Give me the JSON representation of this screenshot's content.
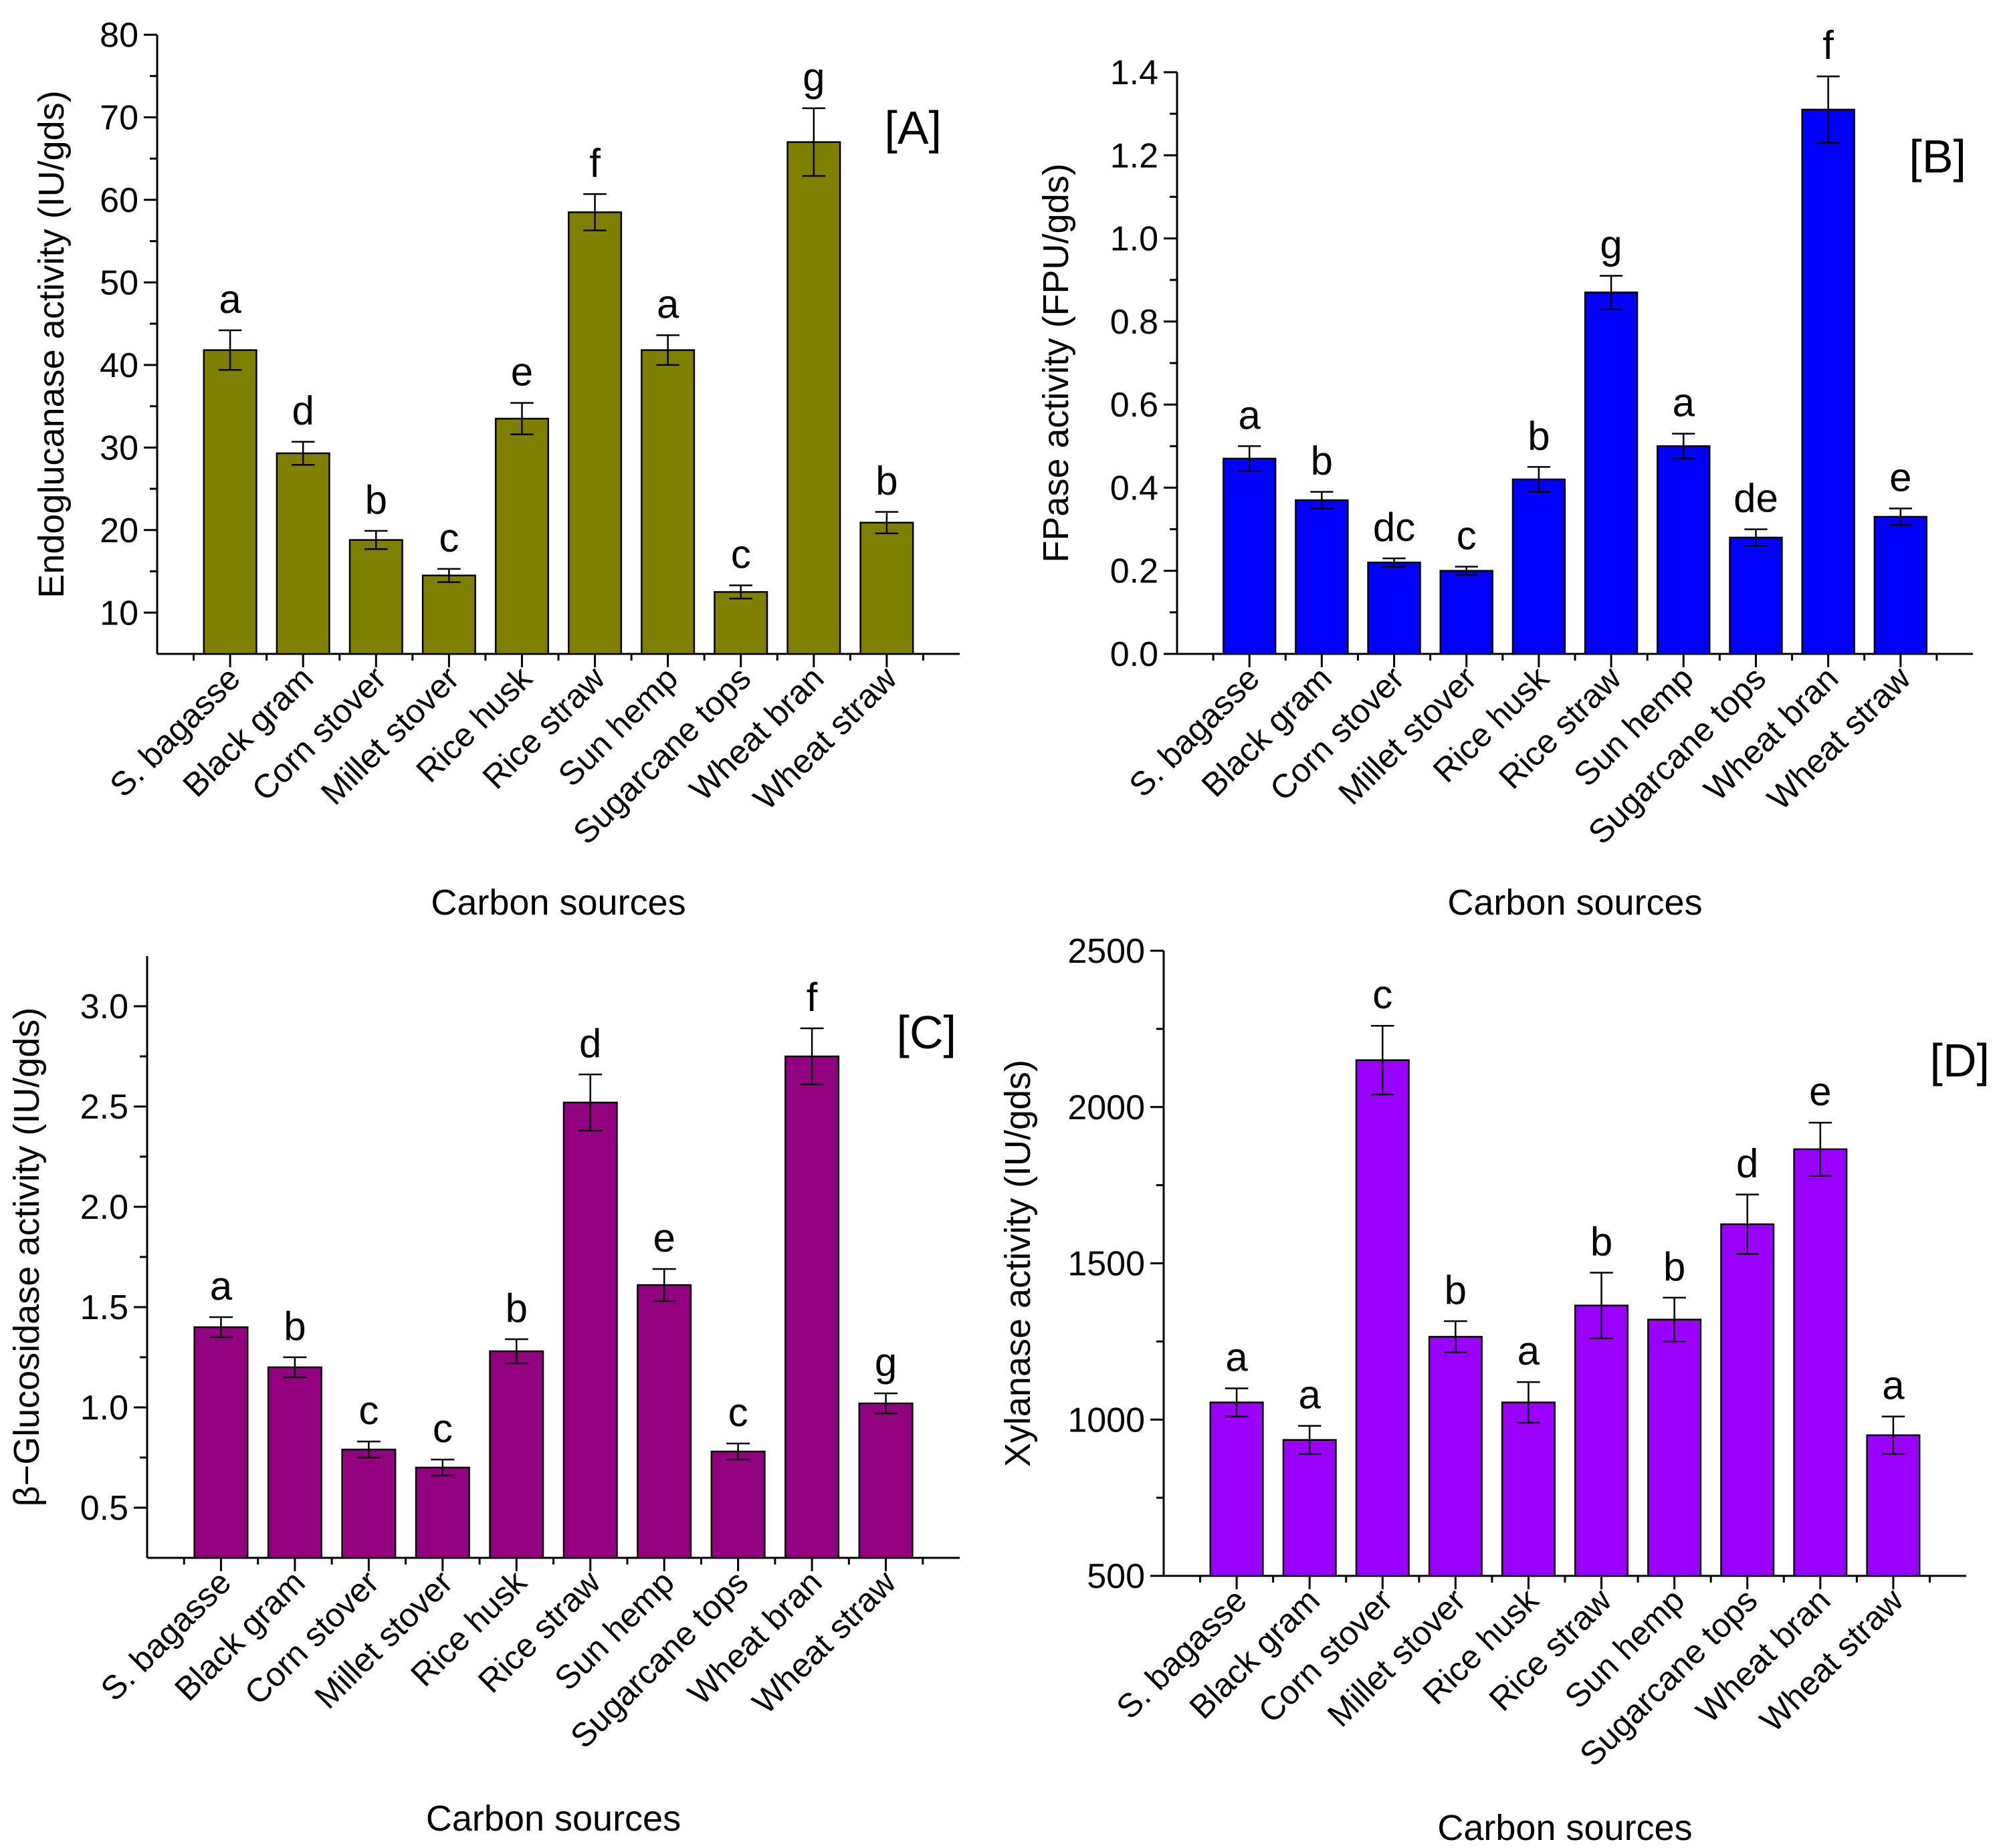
{
  "chart_data": [
    {
      "type": "bar",
      "panel_label": "[A]",
      "xlabel": "Carbon sources",
      "ylabel": "Endoglucanase activity (IU/gds)",
      "ylim": [
        5,
        80
      ],
      "yticks": [
        10,
        20,
        30,
        40,
        50,
        60,
        70,
        80
      ],
      "ytick_labels": [
        "10",
        "20",
        "30",
        "40",
        "50",
        "60",
        "70",
        "80"
      ],
      "bar_color": "#808000",
      "categories": [
        "S. bagasse",
        "Black gram",
        "Corn stover",
        "Millet stover",
        "Rice husk",
        "Rice straw",
        "Sun hemp",
        "Sugarcane tops",
        "Wheat bran",
        "Wheat straw"
      ],
      "values": [
        41.8,
        29.3,
        18.8,
        14.5,
        33.5,
        58.5,
        41.8,
        12.5,
        67.0,
        20.9
      ],
      "errors": [
        2.4,
        1.4,
        1.1,
        0.8,
        1.9,
        2.2,
        1.8,
        0.8,
        4.1,
        1.3
      ],
      "letters": [
        "a",
        "d",
        "b",
        "c",
        "e",
        "f",
        "a",
        "c",
        "g",
        "b"
      ]
    },
    {
      "type": "bar",
      "panel_label": "[B]",
      "xlabel": "Carbon sources",
      "ylabel": "FPase activity (FPU/gds)",
      "ylim": [
        0,
        1.4
      ],
      "yticks": [
        0,
        0.2,
        0.4,
        0.6,
        0.8,
        1.0,
        1.2,
        1.4
      ],
      "ytick_labels": [
        "0.0",
        "0.2",
        "0.4",
        "0.6",
        "0.8",
        "1.0",
        "1.2",
        "1.4"
      ],
      "bar_color": "#0000ff",
      "categories": [
        "S. bagasse",
        "Black gram",
        "Corn stover",
        "Millet stover",
        "Rice husk",
        "Rice straw",
        "Sun hemp",
        "Sugarcane tops",
        "Wheat bran",
        "Wheat straw"
      ],
      "values": [
        0.47,
        0.37,
        0.22,
        0.2,
        0.42,
        0.87,
        0.5,
        0.28,
        1.31,
        0.33
      ],
      "errors": [
        0.03,
        0.02,
        0.01,
        0.01,
        0.03,
        0.04,
        0.03,
        0.02,
        0.08,
        0.02
      ],
      "letters": [
        "a",
        "b",
        "dc",
        "c",
        "b",
        "g",
        "a",
        "de",
        "f",
        "e"
      ]
    },
    {
      "type": "bar",
      "panel_label": "[C]",
      "xlabel": "Carbon sources",
      "ylabel": "β−Glucosidase activity (IU/gds)",
      "ylim": [
        0.25,
        3.25
      ],
      "yticks": [
        0.5,
        1.0,
        1.5,
        2.0,
        2.5,
        3.0
      ],
      "ytick_labels": [
        "0.5",
        "1.0",
        "1.5",
        "2.0",
        "2.5",
        "3.0"
      ],
      "bar_color": "#930080",
      "categories": [
        "S. bagasse",
        "Black gram",
        "Corn stover",
        "Millet stover",
        "Rice husk",
        "Rice straw",
        "Sun hemp",
        "Sugarcane tops",
        "Wheat bran",
        "Wheat straw"
      ],
      "values": [
        1.4,
        1.2,
        0.79,
        0.7,
        1.28,
        2.52,
        1.61,
        0.78,
        2.75,
        1.02
      ],
      "errors": [
        0.05,
        0.05,
        0.04,
        0.04,
        0.06,
        0.14,
        0.08,
        0.04,
        0.14,
        0.05
      ],
      "letters": [
        "a",
        "b",
        "c",
        "c",
        "b",
        "d",
        "e",
        "c",
        "f",
        "g"
      ]
    },
    {
      "type": "bar",
      "panel_label": "[D]",
      "xlabel": "Carbon sources",
      "ylabel": "Xylanase activity (IU/gds)",
      "ylim": [
        500,
        2500
      ],
      "yticks": [
        500,
        1000,
        1500,
        2000,
        2500
      ],
      "ytick_labels": [
        "500",
        "1000",
        "1500",
        "2000",
        "2500"
      ],
      "bar_color": "#9b00ff",
      "categories": [
        "S. bagasse",
        "Black gram",
        "Corn stover",
        "Millet stover",
        "Rice husk",
        "Rice straw",
        "Sun hemp",
        "Sugarcane tops",
        "Wheat bran",
        "Wheat straw"
      ],
      "values": [
        1055,
        935,
        2150,
        1265,
        1055,
        1365,
        1320,
        1625,
        1865,
        950
      ],
      "errors": [
        45,
        45,
        110,
        50,
        65,
        105,
        70,
        95,
        85,
        60
      ],
      "letters": [
        "a",
        "a",
        "c",
        "b",
        "a",
        "b",
        "b",
        "d",
        "e",
        "a"
      ]
    }
  ]
}
